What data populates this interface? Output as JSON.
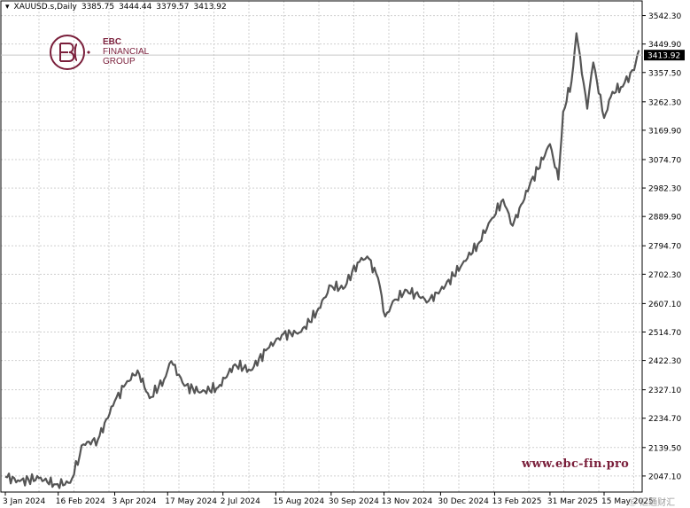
{
  "symbol": "XAUUSD.s,Daily",
  "ohlc": [
    "3385.75",
    "3444.44",
    "3379.57",
    "3413.92"
  ],
  "logo": {
    "line1": "EBC",
    "line2": "FINANCIAL",
    "line3": "GROUP"
  },
  "watermark": "www.ebc-fin.pro",
  "corner_mark": "Ⓔ 汇通财汇",
  "colors": {
    "price_line": "#555555",
    "grid": "#cfcfcf",
    "brand": "#7a1f3b",
    "current_price_bg": "#000000"
  },
  "chart_data": {
    "type": "line",
    "title": "XAUUSD.s,Daily",
    "current_price": 3413.92,
    "ylim": [
      1995,
      3590
    ],
    "y_ticks": [
      3542.3,
      3449.9,
      3357.5,
      3262.3,
      3169.9,
      3074.7,
      2982.3,
      2889.9,
      2794.7,
      2702.3,
      2607.1,
      2514.7,
      2422.3,
      2327.1,
      2234.7,
      2139.5,
      2047.1
    ],
    "y_tick_labels": [
      "3542.30",
      "3449.90",
      "3357.50",
      "3262.30",
      "3169.90",
      "3074.70",
      "2982.30",
      "2889.90",
      "2794.70",
      "2702.30",
      "2607.10",
      "2514.70",
      "2422.30",
      "2327.10",
      "2234.70",
      "2139.50",
      "2047.10"
    ],
    "x_tick_labels": [
      "3 Jan 2024",
      "16 Feb 2024",
      "3 Apr 2024",
      "17 May 2024",
      "2 Jul 2024",
      "15 Aug 2024",
      "30 Sep 2024",
      "13 Nov 2024",
      "30 Dec 2024",
      "13 Feb 2025",
      "31 Mar 2025",
      "15 May 2025"
    ],
    "x": [
      "2024-01-03",
      "2024-01-15",
      "2024-01-31",
      "2024-02-14",
      "2024-02-26",
      "2024-03-08",
      "2024-03-20",
      "2024-04-03",
      "2024-04-12",
      "2024-04-22",
      "2024-05-02",
      "2024-05-14",
      "2024-05-20",
      "2024-05-31",
      "2024-06-14",
      "2024-06-28",
      "2024-07-12",
      "2024-07-25",
      "2024-08-08",
      "2024-08-20",
      "2024-09-05",
      "2024-09-18",
      "2024-09-30",
      "2024-10-10",
      "2024-10-22",
      "2024-10-30",
      "2024-11-08",
      "2024-11-14",
      "2024-11-22",
      "2024-12-02",
      "2024-12-12",
      "2024-12-20",
      "2025-01-03",
      "2025-01-17",
      "2025-01-30",
      "2025-02-11",
      "2025-02-20",
      "2025-02-28",
      "2025-03-14",
      "2025-03-31",
      "2025-04-07",
      "2025-04-11",
      "2025-04-18",
      "2025-04-22",
      "2025-05-01",
      "2025-05-06",
      "2025-05-15",
      "2025-05-22",
      "2025-05-29",
      "2025-06-09",
      "2025-06-13"
    ],
    "values": [
      2045,
      2030,
      2040,
      2020,
      2025,
      2150,
      2165,
      2290,
      2345,
      2390,
      2300,
      2360,
      2420,
      2340,
      2320,
      2335,
      2410,
      2390,
      2460,
      2505,
      2515,
      2580,
      2665,
      2655,
      2740,
      2760,
      2690,
      2565,
      2620,
      2650,
      2630,
      2615,
      2665,
      2735,
      2800,
      2885,
      2945,
      2860,
      2990,
      3125,
      3010,
      3230,
      3330,
      3485,
      3240,
      3390,
      3210,
      3295,
      3310,
      3365,
      3430
    ]
  }
}
